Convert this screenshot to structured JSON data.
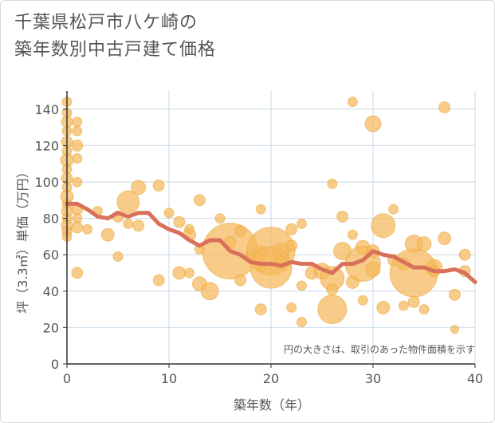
{
  "chart_data": {
    "type": "scatter",
    "title_line1": "千葉県松戸市八ケ崎の",
    "title_line2": "築年数別中古戸建て価格",
    "xlabel": "築年数（年）",
    "ylabel": "坪（3.3㎡）単価（万円）",
    "note": "円の大きさは、取引のあった物件面積を示す",
    "xlim": [
      0,
      40
    ],
    "ylim": [
      0,
      150
    ],
    "x_ticks": [
      "0",
      "10",
      "20",
      "30",
      "40"
    ],
    "y_ticks": [
      "0",
      "20",
      "40",
      "60",
      "80",
      "100",
      "120",
      "140"
    ],
    "grid": true,
    "colors": {
      "bubble": "#f5b95a",
      "trend": "#d9705a",
      "grid": "#c9d9e6"
    },
    "bubbles": [
      {
        "x": 0,
        "y": 144,
        "s": 6
      },
      {
        "x": 0,
        "y": 138,
        "s": 6
      },
      {
        "x": 0,
        "y": 133,
        "s": 7
      },
      {
        "x": 0,
        "y": 128,
        "s": 6
      },
      {
        "x": 0,
        "y": 122,
        "s": 7
      },
      {
        "x": 0,
        "y": 117,
        "s": 6
      },
      {
        "x": 0,
        "y": 112,
        "s": 8
      },
      {
        "x": 0,
        "y": 107,
        "s": 6
      },
      {
        "x": 0,
        "y": 102,
        "s": 7
      },
      {
        "x": 0,
        "y": 97,
        "s": 6
      },
      {
        "x": 0,
        "y": 92,
        "s": 8
      },
      {
        "x": 0,
        "y": 88,
        "s": 6
      },
      {
        "x": 0,
        "y": 84,
        "s": 7
      },
      {
        "x": 0,
        "y": 80,
        "s": 6
      },
      {
        "x": 0,
        "y": 76,
        "s": 7
      },
      {
        "x": 0,
        "y": 73,
        "s": 6
      },
      {
        "x": 0,
        "y": 70,
        "s": 6
      },
      {
        "x": 1,
        "y": 133,
        "s": 6
      },
      {
        "x": 1,
        "y": 128,
        "s": 6
      },
      {
        "x": 1,
        "y": 120,
        "s": 7
      },
      {
        "x": 1,
        "y": 113,
        "s": 6
      },
      {
        "x": 1,
        "y": 100,
        "s": 6
      },
      {
        "x": 1,
        "y": 85,
        "s": 7
      },
      {
        "x": 1,
        "y": 80,
        "s": 6
      },
      {
        "x": 1,
        "y": 75,
        "s": 7
      },
      {
        "x": 1,
        "y": 50,
        "s": 7
      },
      {
        "x": 2,
        "y": 74,
        "s": 6
      },
      {
        "x": 3,
        "y": 84,
        "s": 6
      },
      {
        "x": 4,
        "y": 71,
        "s": 8
      },
      {
        "x": 5,
        "y": 81,
        "s": 7
      },
      {
        "x": 5,
        "y": 59,
        "s": 6
      },
      {
        "x": 6,
        "y": 89,
        "s": 14
      },
      {
        "x": 6,
        "y": 77,
        "s": 6
      },
      {
        "x": 7,
        "y": 97,
        "s": 9
      },
      {
        "x": 7,
        "y": 76,
        "s": 7
      },
      {
        "x": 9,
        "y": 98,
        "s": 7
      },
      {
        "x": 9,
        "y": 46,
        "s": 7
      },
      {
        "x": 10,
        "y": 83,
        "s": 6
      },
      {
        "x": 11,
        "y": 78,
        "s": 7
      },
      {
        "x": 11,
        "y": 50,
        "s": 8
      },
      {
        "x": 12,
        "y": 74,
        "s": 6
      },
      {
        "x": 12,
        "y": 71,
        "s": 8
      },
      {
        "x": 12,
        "y": 50,
        "s": 6
      },
      {
        "x": 13,
        "y": 90,
        "s": 7
      },
      {
        "x": 13,
        "y": 44,
        "s": 9
      },
      {
        "x": 13,
        "y": 63,
        "s": 6
      },
      {
        "x": 14,
        "y": 40,
        "s": 11
      },
      {
        "x": 15,
        "y": 80,
        "s": 6
      },
      {
        "x": 16,
        "y": 62,
        "s": 35
      },
      {
        "x": 16,
        "y": 67,
        "s": 7
      },
      {
        "x": 17,
        "y": 73,
        "s": 7
      },
      {
        "x": 17,
        "y": 46,
        "s": 7
      },
      {
        "x": 18,
        "y": 60,
        "s": 6
      },
      {
        "x": 19,
        "y": 85,
        "s": 6
      },
      {
        "x": 19,
        "y": 61,
        "s": 9
      },
      {
        "x": 19,
        "y": 54,
        "s": 8
      },
      {
        "x": 19,
        "y": 30,
        "s": 7
      },
      {
        "x": 20,
        "y": 62,
        "s": 30
      },
      {
        "x": 20,
        "y": 53,
        "s": 26
      },
      {
        "x": 21,
        "y": 62,
        "s": 10
      },
      {
        "x": 21,
        "y": 56,
        "s": 8
      },
      {
        "x": 22,
        "y": 74,
        "s": 7
      },
      {
        "x": 22,
        "y": 65,
        "s": 7
      },
      {
        "x": 22,
        "y": 31,
        "s": 6
      },
      {
        "x": 23,
        "y": 77,
        "s": 6
      },
      {
        "x": 23,
        "y": 43,
        "s": 6
      },
      {
        "x": 23,
        "y": 23,
        "s": 6
      },
      {
        "x": 24,
        "y": 50,
        "s": 8
      },
      {
        "x": 25,
        "y": 51,
        "s": 10
      },
      {
        "x": 26,
        "y": 99,
        "s": 6
      },
      {
        "x": 26,
        "y": 47,
        "s": 15
      },
      {
        "x": 26,
        "y": 41,
        "s": 7
      },
      {
        "x": 26,
        "y": 30,
        "s": 18
      },
      {
        "x": 27,
        "y": 81,
        "s": 7
      },
      {
        "x": 27,
        "y": 62,
        "s": 11
      },
      {
        "x": 28,
        "y": 144,
        "s": 6
      },
      {
        "x": 28,
        "y": 71,
        "s": 6
      },
      {
        "x": 28,
        "y": 45,
        "s": 8
      },
      {
        "x": 29,
        "y": 64,
        "s": 9
      },
      {
        "x": 29,
        "y": 55,
        "s": 22
      },
      {
        "x": 29,
        "y": 35,
        "s": 6
      },
      {
        "x": 30,
        "y": 132,
        "s": 10
      },
      {
        "x": 30,
        "y": 62,
        "s": 8
      },
      {
        "x": 30,
        "y": 52,
        "s": 9
      },
      {
        "x": 31,
        "y": 76,
        "s": 15
      },
      {
        "x": 31,
        "y": 31,
        "s": 8
      },
      {
        "x": 32,
        "y": 85,
        "s": 6
      },
      {
        "x": 32,
        "y": 57,
        "s": 7
      },
      {
        "x": 33,
        "y": 55,
        "s": 8
      },
      {
        "x": 33,
        "y": 32,
        "s": 6
      },
      {
        "x": 34,
        "y": 66,
        "s": 11
      },
      {
        "x": 34,
        "y": 50,
        "s": 30
      },
      {
        "x": 34,
        "y": 34,
        "s": 7
      },
      {
        "x": 35,
        "y": 66,
        "s": 9
      },
      {
        "x": 35,
        "y": 30,
        "s": 6
      },
      {
        "x": 36,
        "y": 53,
        "s": 10
      },
      {
        "x": 36,
        "y": 51,
        "s": 7
      },
      {
        "x": 37,
        "y": 141,
        "s": 7
      },
      {
        "x": 37,
        "y": 69,
        "s": 8
      },
      {
        "x": 38,
        "y": 38,
        "s": 7
      },
      {
        "x": 38,
        "y": 19,
        "s": 5
      },
      {
        "x": 39,
        "y": 60,
        "s": 7
      },
      {
        "x": 39,
        "y": 51,
        "s": 7
      }
    ],
    "trend": {
      "x": [
        0,
        1,
        2,
        3,
        4,
        5,
        6,
        7,
        8,
        9,
        10,
        11,
        12,
        13,
        14,
        15,
        16,
        17,
        18,
        19,
        20,
        21,
        22,
        23,
        24,
        25,
        26,
        27,
        28,
        29,
        30,
        31,
        32,
        33,
        34,
        35,
        36,
        37,
        38,
        39,
        40
      ],
      "y": [
        88,
        88,
        85,
        81,
        80,
        83,
        81,
        83,
        83,
        77,
        74,
        72,
        68,
        65,
        68,
        68,
        62,
        60,
        56,
        55,
        55,
        54,
        56,
        55,
        55,
        52,
        50,
        55,
        55,
        57,
        62,
        60,
        59,
        56,
        53,
        53,
        51,
        51,
        52,
        50,
        45
      ]
    }
  }
}
